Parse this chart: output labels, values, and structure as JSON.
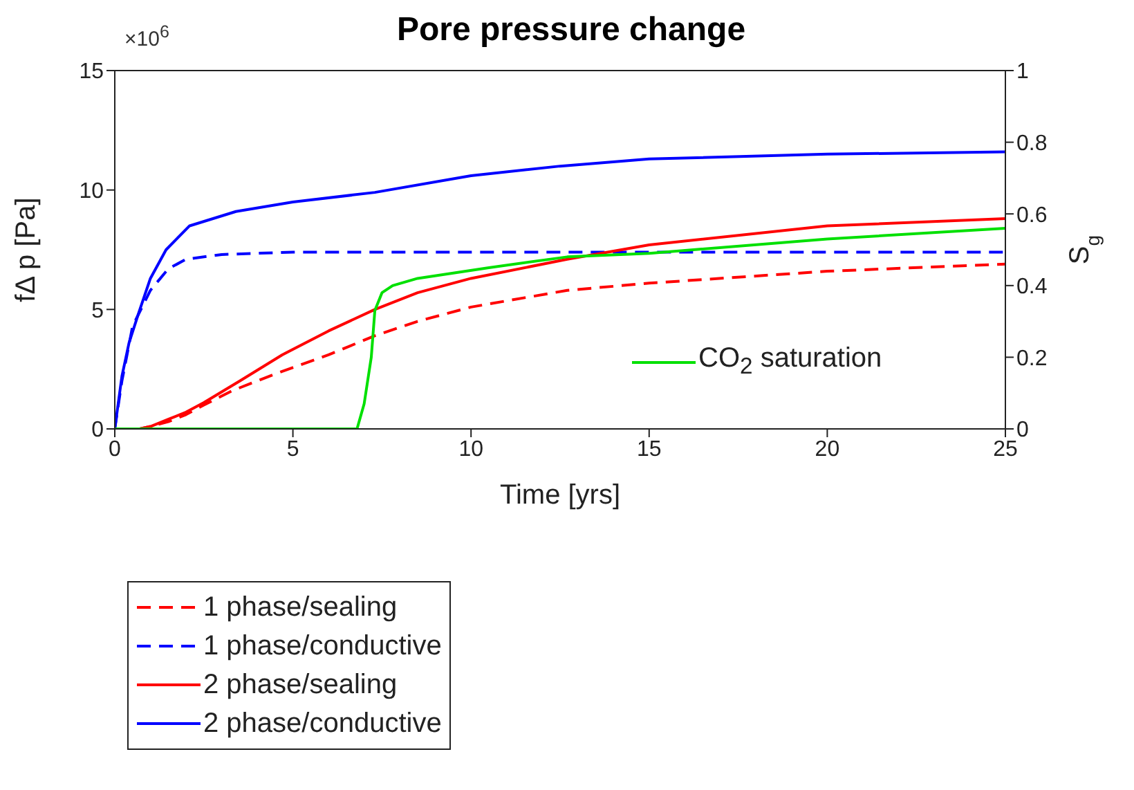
{
  "chart_data": {
    "type": "line",
    "title": "Pore pressure change",
    "xlabel": "Time [yrs]",
    "ylabel": "fΔ p [Pa]",
    "y2label": "S$_{g}$",
    "annotations": [
      "×10$^{6}$"
    ],
    "xlim": [
      0,
      25
    ],
    "xticks": [
      0,
      5,
      10,
      15,
      20,
      25
    ],
    "ylim": [
      0,
      15
    ],
    "yticks": [
      0,
      5,
      10,
      15
    ],
    "y2lim": [
      0,
      1
    ],
    "y2ticks": [
      0,
      0.2,
      0.4,
      0.6,
      0.8,
      1
    ],
    "legend": "bottom left",
    "marker": "none",
    "series": [
      {
        "name": "1 phase/sealing",
        "color": "#ff0000",
        "line_style": "dashed",
        "x": [
          0,
          0.7,
          1,
          1.5,
          2,
          2.5,
          3.3,
          4.5,
          6,
          7.3,
          8.5,
          10,
          12.7,
          15,
          20,
          25
        ],
        "values": [
          0,
          0,
          0.1,
          0.3,
          0.6,
          1,
          1.6,
          2.3,
          3.1,
          3.9,
          4.5,
          5.1,
          5.8,
          6.1,
          6.6,
          6.9
        ]
      },
      {
        "name": "1 phase/conductive",
        "color": "#0000ff",
        "line_style": "dashed",
        "x": [
          0,
          0.2,
          0.5,
          1,
          1.5,
          2,
          3,
          5,
          10,
          15,
          20,
          25
        ],
        "values": [
          0,
          2,
          4.3,
          5.8,
          6.7,
          7.1,
          7.3,
          7.4,
          7.4,
          7.4,
          7.4,
          7.4
        ]
      },
      {
        "name": "2 phase/sealing",
        "color": "#ff0000",
        "line_style": "solid",
        "x": [
          0,
          0.7,
          1,
          1.5,
          2,
          2.5,
          3.5,
          4.7,
          6,
          7.3,
          8.5,
          10,
          12.7,
          15,
          20,
          25
        ],
        "values": [
          0,
          0,
          0.1,
          0.4,
          0.7,
          1.1,
          2,
          3.1,
          4.1,
          5,
          5.7,
          6.3,
          7.1,
          7.7,
          8.5,
          8.8
        ]
      },
      {
        "name": "2 phase/conductive",
        "color": "#0000ff",
        "line_style": "solid",
        "x": [
          0,
          0.2,
          0.4,
          0.66,
          1,
          1.44,
          2.1,
          3.4,
          5,
          7.3,
          10,
          12.5,
          15,
          20,
          25
        ],
        "values": [
          0,
          2.2,
          3.6,
          4.8,
          6.3,
          7.5,
          8.5,
          9.1,
          9.5,
          9.9,
          10.6,
          11,
          11.3,
          11.5,
          11.6
        ]
      },
      {
        "name": "CO$_{2}$ saturation",
        "color": "#00e000",
        "line_style": "solid",
        "axis": "y2",
        "x": [
          0,
          6.8,
          7,
          7.2,
          7.3,
          7.5,
          7.8,
          8.5,
          10.5,
          12.7,
          15,
          20,
          25
        ],
        "values": [
          0,
          0,
          0.07,
          0.2,
          0.33,
          0.38,
          0.4,
          0.42,
          0.45,
          0.48,
          0.49,
          0.53,
          0.56
        ]
      }
    ]
  }
}
